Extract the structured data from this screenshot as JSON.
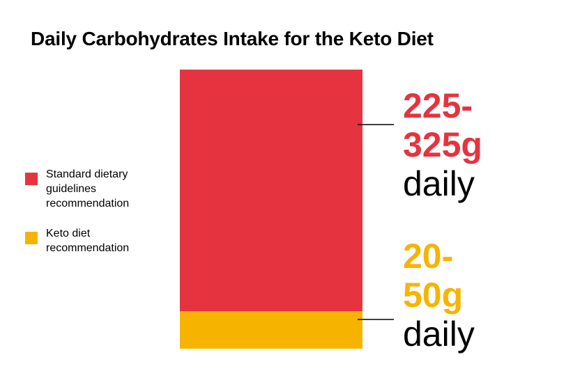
{
  "colors": {
    "standard": "#e5343f",
    "keto": "#f6b400",
    "text": "#000000"
  },
  "chart_data": {
    "type": "bar",
    "title": "Daily Carbohydrates Intake for the Keto Diet",
    "xlabel": "",
    "ylabel": "",
    "stacked": true,
    "grid": false,
    "legend_position": "left",
    "unit": "g",
    "series": [
      {
        "name": "Standard dietary guidelines recommendation",
        "value_range": [
          225,
          325
        ],
        "color": "#e5343f",
        "label_lines": [
          "225-",
          "325g"
        ],
        "label_suffix": "daily"
      },
      {
        "name": "Keto diet recommendation",
        "value_range": [
          20,
          50
        ],
        "color": "#f6b400",
        "label_lines": [
          "20-",
          "50g"
        ],
        "label_suffix": "daily"
      }
    ]
  }
}
